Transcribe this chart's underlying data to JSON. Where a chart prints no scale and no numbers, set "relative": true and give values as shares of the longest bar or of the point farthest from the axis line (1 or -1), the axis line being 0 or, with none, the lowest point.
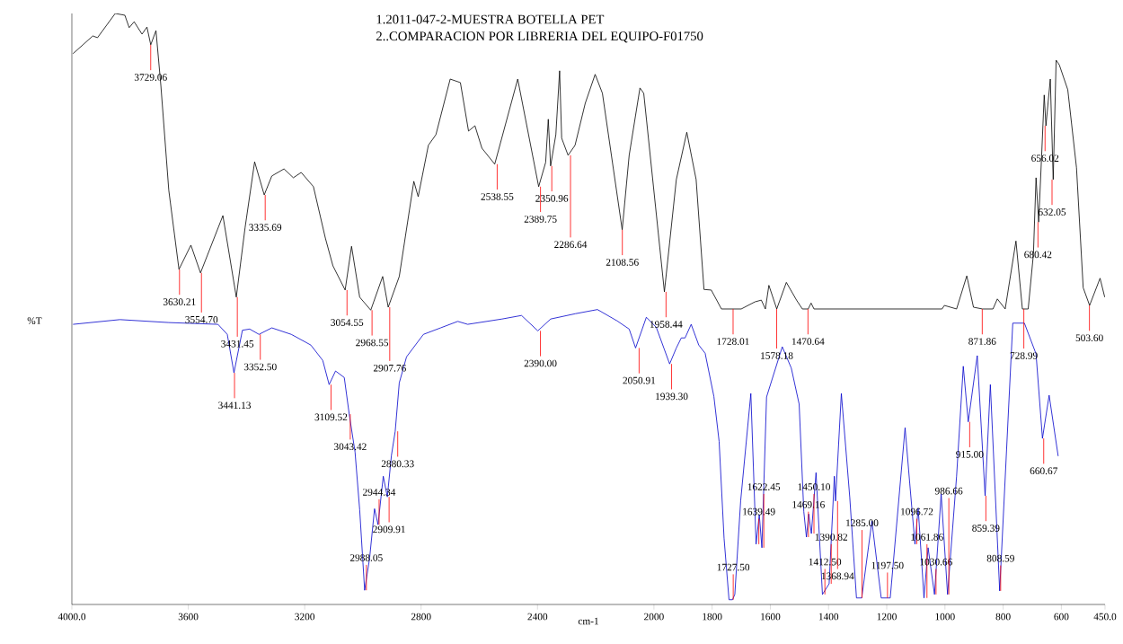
{
  "chart_data": {
    "type": "line",
    "relative": true,
    "title": "1.2011-047-2-MUESTRA BOTELLA PET",
    "subtitle": "2..COMPARACION POR LIBRERIA DEL EQUIPO-F01750",
    "xlabel": "cm-1",
    "ylabel": "%T",
    "xlim": [
      4000,
      450
    ],
    "xticks": [
      {
        "value": 4000,
        "label": "4000.0"
      },
      3600,
      3200,
      2800,
      2400,
      2000,
      1800,
      1600,
      1400,
      1200,
      1000,
      800,
      600,
      {
        "value": 450,
        "label": "450.0"
      }
    ],
    "series": [
      {
        "color": "#000000",
        "x": [
          3996,
          3928,
          3912,
          3851,
          3818,
          3803,
          3786,
          3759,
          3742,
          3729,
          3711,
          3694,
          3667,
          3632,
          3591,
          3558,
          3481,
          3435,
          3405,
          3372,
          3339,
          3313,
          3271,
          3239,
          3212,
          3170,
          3129,
          3103,
          3061,
          3039,
          3011,
          2973,
          2932,
          2913,
          2875,
          2825,
          2810,
          2775,
          2749,
          2700,
          2665,
          2637,
          2615,
          2591,
          2547,
          2468,
          2396,
          2372,
          2363,
          2355,
          2337,
          2324,
          2317,
          2295,
          2271,
          2236,
          2202,
          2177,
          2109,
          2085,
          2048,
          2035,
          1964,
          1923,
          1887,
          1855,
          1828,
          1803,
          1768,
          1700,
          1653,
          1631,
          1617,
          1605,
          1578,
          1545,
          1510,
          1490,
          1470,
          1460,
          1450,
          1010,
          1002,
          960,
          925,
          902,
          871,
          835,
          820,
          793,
          756,
          734,
          714,
          696,
          687,
          678,
          667,
          659,
          653,
          638,
          628,
          618,
          607,
          578,
          548,
          525,
          503,
          467,
          451
        ],
        "values": [
          0.932,
          0.962,
          0.959,
          1.0,
          0.997,
          0.976,
          0.986,
          0.965,
          0.977,
          0.947,
          0.971,
          0.877,
          0.701,
          0.567,
          0.608,
          0.561,
          0.658,
          0.52,
          0.637,
          0.749,
          0.693,
          0.725,
          0.737,
          0.722,
          0.731,
          0.707,
          0.62,
          0.573,
          0.532,
          0.606,
          0.52,
          0.498,
          0.555,
          0.503,
          0.555,
          0.716,
          0.69,
          0.777,
          0.795,
          0.889,
          0.883,
          0.801,
          0.81,
          0.772,
          0.745,
          0.889,
          0.707,
          0.748,
          0.821,
          0.742,
          0.795,
          0.903,
          0.789,
          0.76,
          0.777,
          0.848,
          0.897,
          0.865,
          0.634,
          0.76,
          0.874,
          0.865,
          0.529,
          0.719,
          0.799,
          0.719,
          0.533,
          0.532,
          0.5,
          0.5,
          0.512,
          0.515,
          0.5,
          0.54,
          0.5,
          0.545,
          0.515,
          0.5,
          0.5,
          0.51,
          0.5,
          0.5,
          0.506,
          0.5,
          0.556,
          0.503,
          0.5,
          0.5,
          0.517,
          0.5,
          0.615,
          0.5,
          0.5,
          0.593,
          0.722,
          0.647,
          0.769,
          0.862,
          0.81,
          0.889,
          0.719,
          0.921,
          0.913,
          0.871,
          0.739,
          0.536,
          0.506,
          0.552,
          0.52
        ]
      },
      {
        "color": "#0000cc",
        "x": [
          3996,
          3835,
          3667,
          3498,
          3466,
          3443,
          3414,
          3389,
          3357,
          3313,
          3246,
          3179,
          3138,
          3116,
          3094,
          3064,
          3047,
          3027,
          3011,
          2994,
          2977,
          2960,
          2948,
          2930,
          2916,
          2902,
          2889,
          2875,
          2850,
          2792,
          2733,
          2674,
          2640,
          2522,
          2455,
          2399,
          2355,
          2270,
          2194,
          2127,
          2085,
          2063,
          2026,
          1992,
          1966,
          1946,
          1923,
          1906,
          1893,
          1872,
          1846,
          1824,
          1794,
          1776,
          1759,
          1742,
          1730,
          1722,
          1702,
          1667,
          1649,
          1638,
          1629,
          1613,
          1559,
          1528,
          1501,
          1485,
          1476,
          1468,
          1459,
          1443,
          1421,
          1398,
          1380,
          1376,
          1356,
          1327,
          1304,
          1286,
          1251,
          1219,
          1188,
          1137,
          1121,
          1103,
          1092,
          1072,
          1058,
          1036,
          1013,
          991,
          960,
          937,
          920,
          889,
          862,
          844,
          812,
          767,
          727,
          687,
          665,
          642,
          611
        ],
        "values": [
          0.474,
          0.482,
          0.477,
          0.474,
          0.457,
          0.392,
          0.464,
          0.466,
          0.457,
          0.468,
          0.457,
          0.439,
          0.413,
          0.372,
          0.395,
          0.384,
          0.322,
          0.258,
          0.16,
          0.024,
          0.078,
          0.162,
          0.135,
          0.217,
          0.182,
          0.252,
          0.293,
          0.375,
          0.419,
          0.457,
          0.468,
          0.479,
          0.474,
          0.483,
          0.489,
          0.463,
          0.483,
          0.492,
          0.499,
          0.48,
          0.466,
          0.434,
          0.486,
          0.469,
          0.434,
          0.407,
          0.434,
          0.451,
          0.451,
          0.474,
          0.439,
          0.425,
          0.352,
          0.276,
          0.112,
          0.008,
          0.008,
          0.017,
          0.175,
          0.357,
          0.102,
          0.152,
          0.096,
          0.351,
          0.436,
          0.4,
          0.339,
          0.157,
          0.114,
          0.153,
          0.12,
          0.223,
          0.017,
          0.035,
          0.217,
          0.175,
          0.357,
          0.181,
          0.011,
          0.011,
          0.141,
          0.011,
          0.011,
          0.299,
          0.205,
          0.102,
          0.163,
          0.011,
          0.096,
          0.017,
          0.187,
          0.017,
          0.217,
          0.403,
          0.309,
          0.421,
          0.184,
          0.372,
          0.023,
          0.476,
          0.476,
          0.424,
          0.281,
          0.354,
          0.251
        ]
      }
    ],
    "annotations": [
      {
        "text": "3729.06",
        "x": 3729.06,
        "y": 0.947
      },
      {
        "text": "3630.21",
        "x": 3630.21,
        "y": 0.567
      },
      {
        "text": "3554.70",
        "x": 3554.7,
        "y": 0.561
      },
      {
        "text": "3431.45",
        "x": 3431.45,
        "y": 0.52
      },
      {
        "text": "3335.69",
        "x": 3335.69,
        "y": 0.693
      },
      {
        "text": "3054.55",
        "x": 3054.55,
        "y": 0.532
      },
      {
        "text": "2968.55",
        "x": 2968.55,
        "y": 0.498
      },
      {
        "text": "2907.76",
        "x": 2907.76,
        "y": 0.503
      },
      {
        "text": "2538.55",
        "x": 2538.55,
        "y": 0.745
      },
      {
        "text": "2389.75",
        "x": 2389.75,
        "y": 0.707
      },
      {
        "text": "2350.96",
        "x": 2350.96,
        "y": 0.742
      },
      {
        "text": "2286.64",
        "x": 2286.64,
        "y": 0.76
      },
      {
        "text": "2108.56",
        "x": 2108.56,
        "y": 0.634
      },
      {
        "text": "1958.44",
        "x": 1958.44,
        "y": 0.529
      },
      {
        "text": "1728.01",
        "x": 1728.01,
        "y": 0.5
      },
      {
        "text": "1578.18",
        "x": 1578.18,
        "y": 0.5
      },
      {
        "text": "1470.64",
        "x": 1470.64,
        "y": 0.5
      },
      {
        "text": "871.86",
        "x": 871.86,
        "y": 0.5
      },
      {
        "text": "728.99",
        "x": 728.99,
        "y": 0.5
      },
      {
        "text": "680.42",
        "x": 680.42,
        "y": 0.647
      },
      {
        "text": "656.02",
        "x": 656.02,
        "y": 0.81
      },
      {
        "text": "632.05",
        "x": 632.05,
        "y": 0.719
      },
      {
        "text": "503.60",
        "x": 503.6,
        "y": 0.506
      },
      {
        "text": "3441.13",
        "x": 3441.13,
        "y": 0.392
      },
      {
        "text": "3352.50",
        "x": 3352.5,
        "y": 0.457
      },
      {
        "text": "3109.52",
        "x": 3109.52,
        "y": 0.372
      },
      {
        "text": "3043.42",
        "x": 3043.42,
        "y": 0.322
      },
      {
        "text": "2988.05",
        "x": 2988.05,
        "y": 0.024
      },
      {
        "text": "2944.34",
        "x": 2944.34,
        "y": 0.135
      },
      {
        "text": "2909.91",
        "x": 2909.91,
        "y": 0.182
      },
      {
        "text": "2880.33",
        "x": 2880.33,
        "y": 0.293
      },
      {
        "text": "2390.00",
        "x": 2390.0,
        "y": 0.463
      },
      {
        "text": "2050.91",
        "x": 2050.91,
        "y": 0.434
      },
      {
        "text": "1939.30",
        "x": 1939.3,
        "y": 0.407
      },
      {
        "text": "1727.50",
        "x": 1727.5,
        "y": 0.008
      },
      {
        "text": "1639.49",
        "x": 1639.49,
        "y": 0.102
      },
      {
        "text": "1622.45",
        "x": 1622.45,
        "y": 0.096
      },
      {
        "text": "1469.16",
        "x": 1469.16,
        "y": 0.114
      },
      {
        "text": "1450.10",
        "x": 1450.1,
        "y": 0.12
      },
      {
        "text": "1412.50",
        "x": 1412.5,
        "y": 0.017
      },
      {
        "text": "1390.82",
        "x": 1390.82,
        "y": 0.035
      },
      {
        "text": "1368.94",
        "x": 1368.94,
        "y": 0.175
      },
      {
        "text": "1285.00",
        "x": 1285.0,
        "y": 0.011
      },
      {
        "text": "1197.50",
        "x": 1197.5,
        "y": 0.011
      },
      {
        "text": "1096.72",
        "x": 1096.72,
        "y": 0.102
      },
      {
        "text": "1061.86",
        "x": 1061.86,
        "y": 0.011
      },
      {
        "text": "1030.66",
        "x": 1030.66,
        "y": 0.017
      },
      {
        "text": "986.66",
        "x": 986.66,
        "y": 0.017
      },
      {
        "text": "915.00",
        "x": 915.0,
        "y": 0.309
      },
      {
        "text": "859.39",
        "x": 859.39,
        "y": 0.184
      },
      {
        "text": "808.59",
        "x": 808.59,
        "y": 0.023
      },
      {
        "text": "660.67",
        "x": 660.67,
        "y": 0.281
      }
    ]
  }
}
